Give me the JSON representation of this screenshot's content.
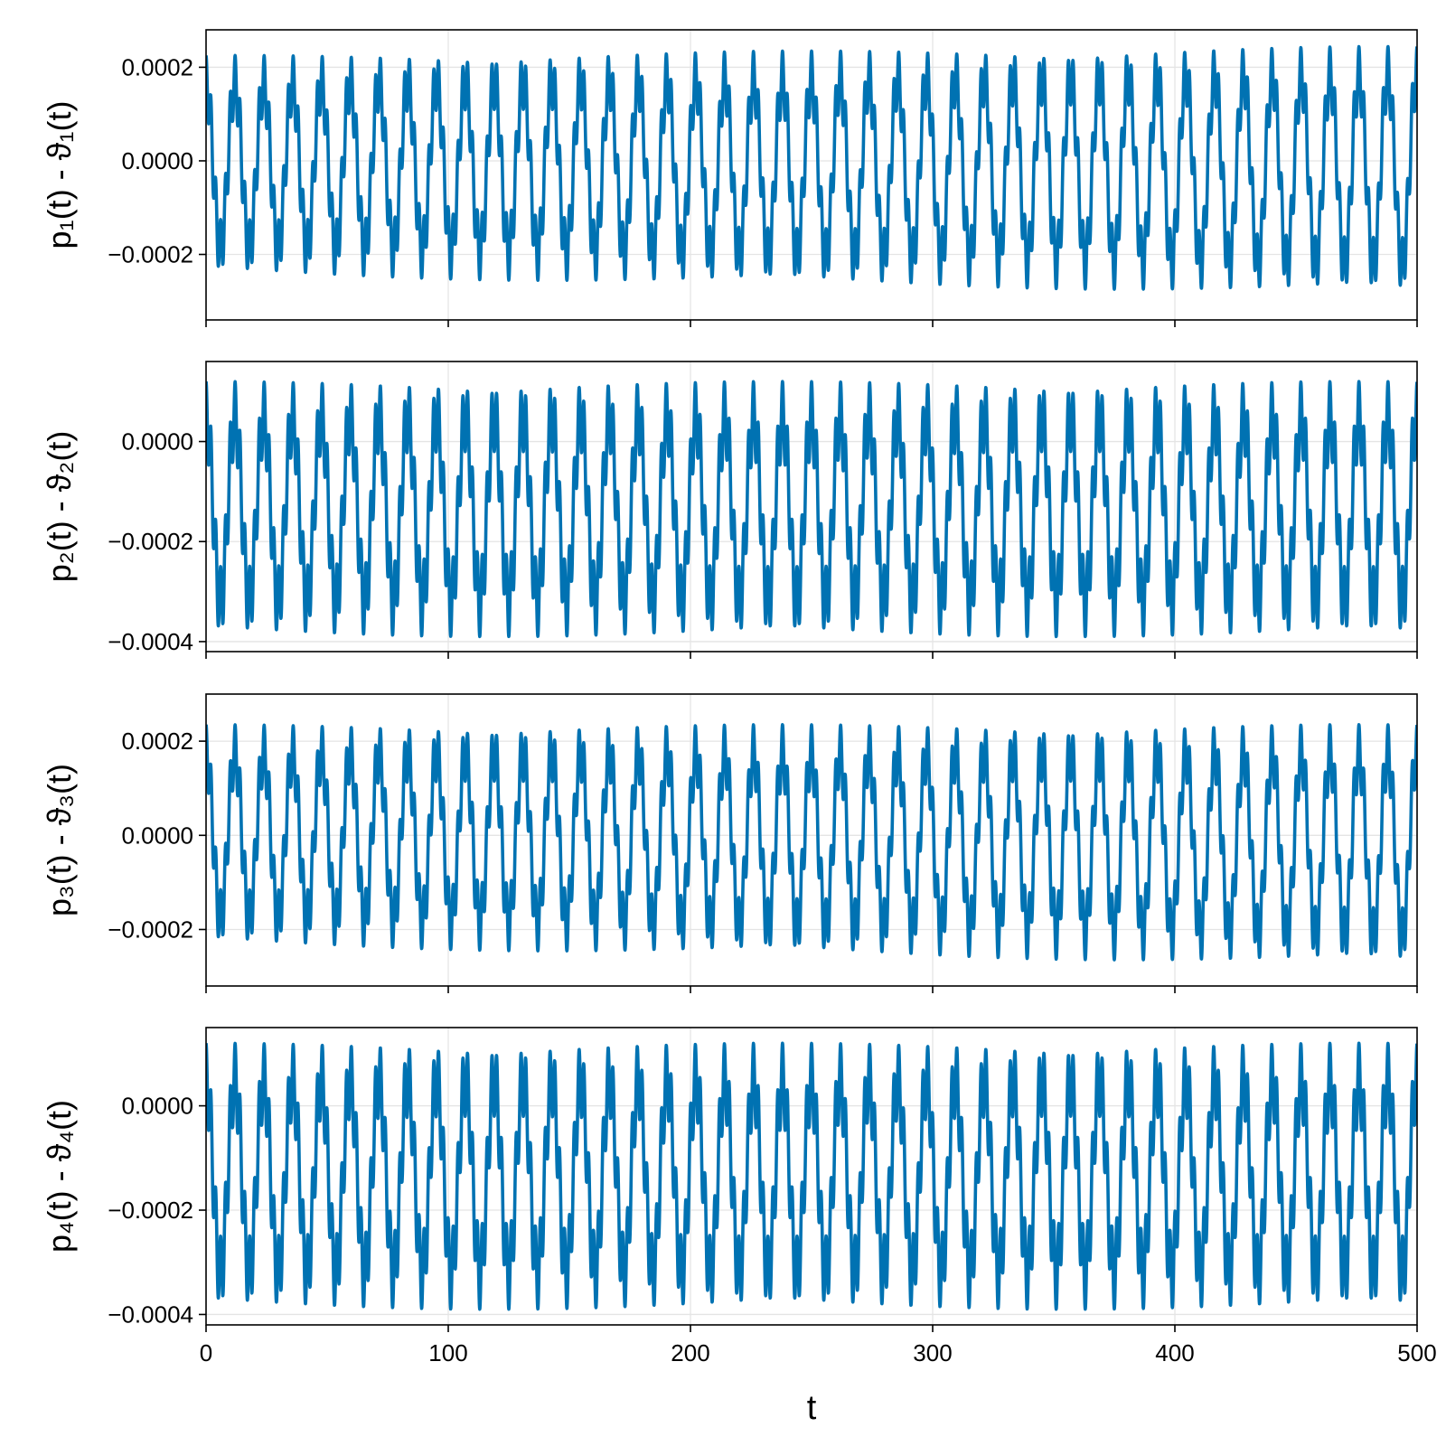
{
  "chart_data": [
    {
      "type": "line",
      "ylabel": "p₁(t) - ϑ₁(t)",
      "xlim": [
        0,
        500
      ],
      "ylim": [
        -0.00034,
        0.00028
      ],
      "yticks": [
        -0.0002,
        0.0,
        0.0002
      ],
      "ytick_labels": [
        "−0.0002",
        "0.0000",
        "0.0002"
      ],
      "xticks": [
        0,
        100,
        200,
        300,
        400,
        500
      ],
      "series": [
        {
          "mean": -1e-05,
          "slow_amp_start": 0.000175,
          "slow_amp_end": 0.000205,
          "slow_period": 11.9,
          "fast_amp": 6e-05,
          "fast_period": 2.0,
          "drift": -1e-05,
          "color": "#0072b2"
        }
      ]
    },
    {
      "type": "line",
      "ylabel": "p₂(t) - ϑ₂(t)",
      "xlim": [
        0,
        500
      ],
      "ylim": [
        -0.00042,
        0.00016
      ],
      "yticks": [
        -0.0004,
        -0.0002,
        0.0
      ],
      "ytick_labels": [
        "−0.0004",
        "−0.0002",
        "0.0000"
      ],
      "xticks": [
        0,
        100,
        200,
        300,
        400,
        500
      ],
      "series": [
        {
          "mean": -0.000135,
          "slow_amp_start": 0.000185,
          "slow_amp_end": 0.000185,
          "slow_period": 11.9,
          "fast_amp": 7e-05,
          "fast_period": 2.0,
          "drift": 0.0,
          "color": "#0072b2"
        }
      ]
    },
    {
      "type": "line",
      "ylabel": "p₃(t) - ϑ₃(t)",
      "xlim": [
        0,
        500
      ],
      "ylim": [
        -0.00032,
        0.0003
      ],
      "yticks": [
        -0.0002,
        0.0,
        0.0002
      ],
      "ytick_labels": [
        "−0.0002",
        "0.0000",
        "0.0002"
      ],
      "xticks": [
        0,
        100,
        200,
        300,
        400,
        500
      ],
      "series": [
        {
          "mean": 0.0,
          "slow_amp_start": 0.000175,
          "slow_amp_end": 0.000195,
          "slow_period": 11.9,
          "fast_amp": 6e-05,
          "fast_period": 2.0,
          "drift": -2e-05,
          "color": "#0072b2"
        }
      ]
    },
    {
      "type": "line",
      "ylabel": "p₄(t) - ϑ₄(t)",
      "xlabel": "t",
      "xlim": [
        0,
        500
      ],
      "ylim": [
        -0.00042,
        0.00015
      ],
      "yticks": [
        -0.0004,
        -0.0002,
        0.0
      ],
      "ytick_labels": [
        "−0.0004",
        "−0.0002",
        "0.0000"
      ],
      "xticks": [
        0,
        100,
        200,
        300,
        400,
        500
      ],
      "xtick_labels": [
        "0",
        "100",
        "200",
        "300",
        "400",
        "500"
      ],
      "series": [
        {
          "mean": -0.000135,
          "slow_amp_start": 0.000185,
          "slow_amp_end": 0.000185,
          "slow_period": 11.9,
          "fast_amp": 7e-05,
          "fast_period": 2.0,
          "drift": 0.0,
          "color": "#0072b2"
        }
      ]
    }
  ]
}
